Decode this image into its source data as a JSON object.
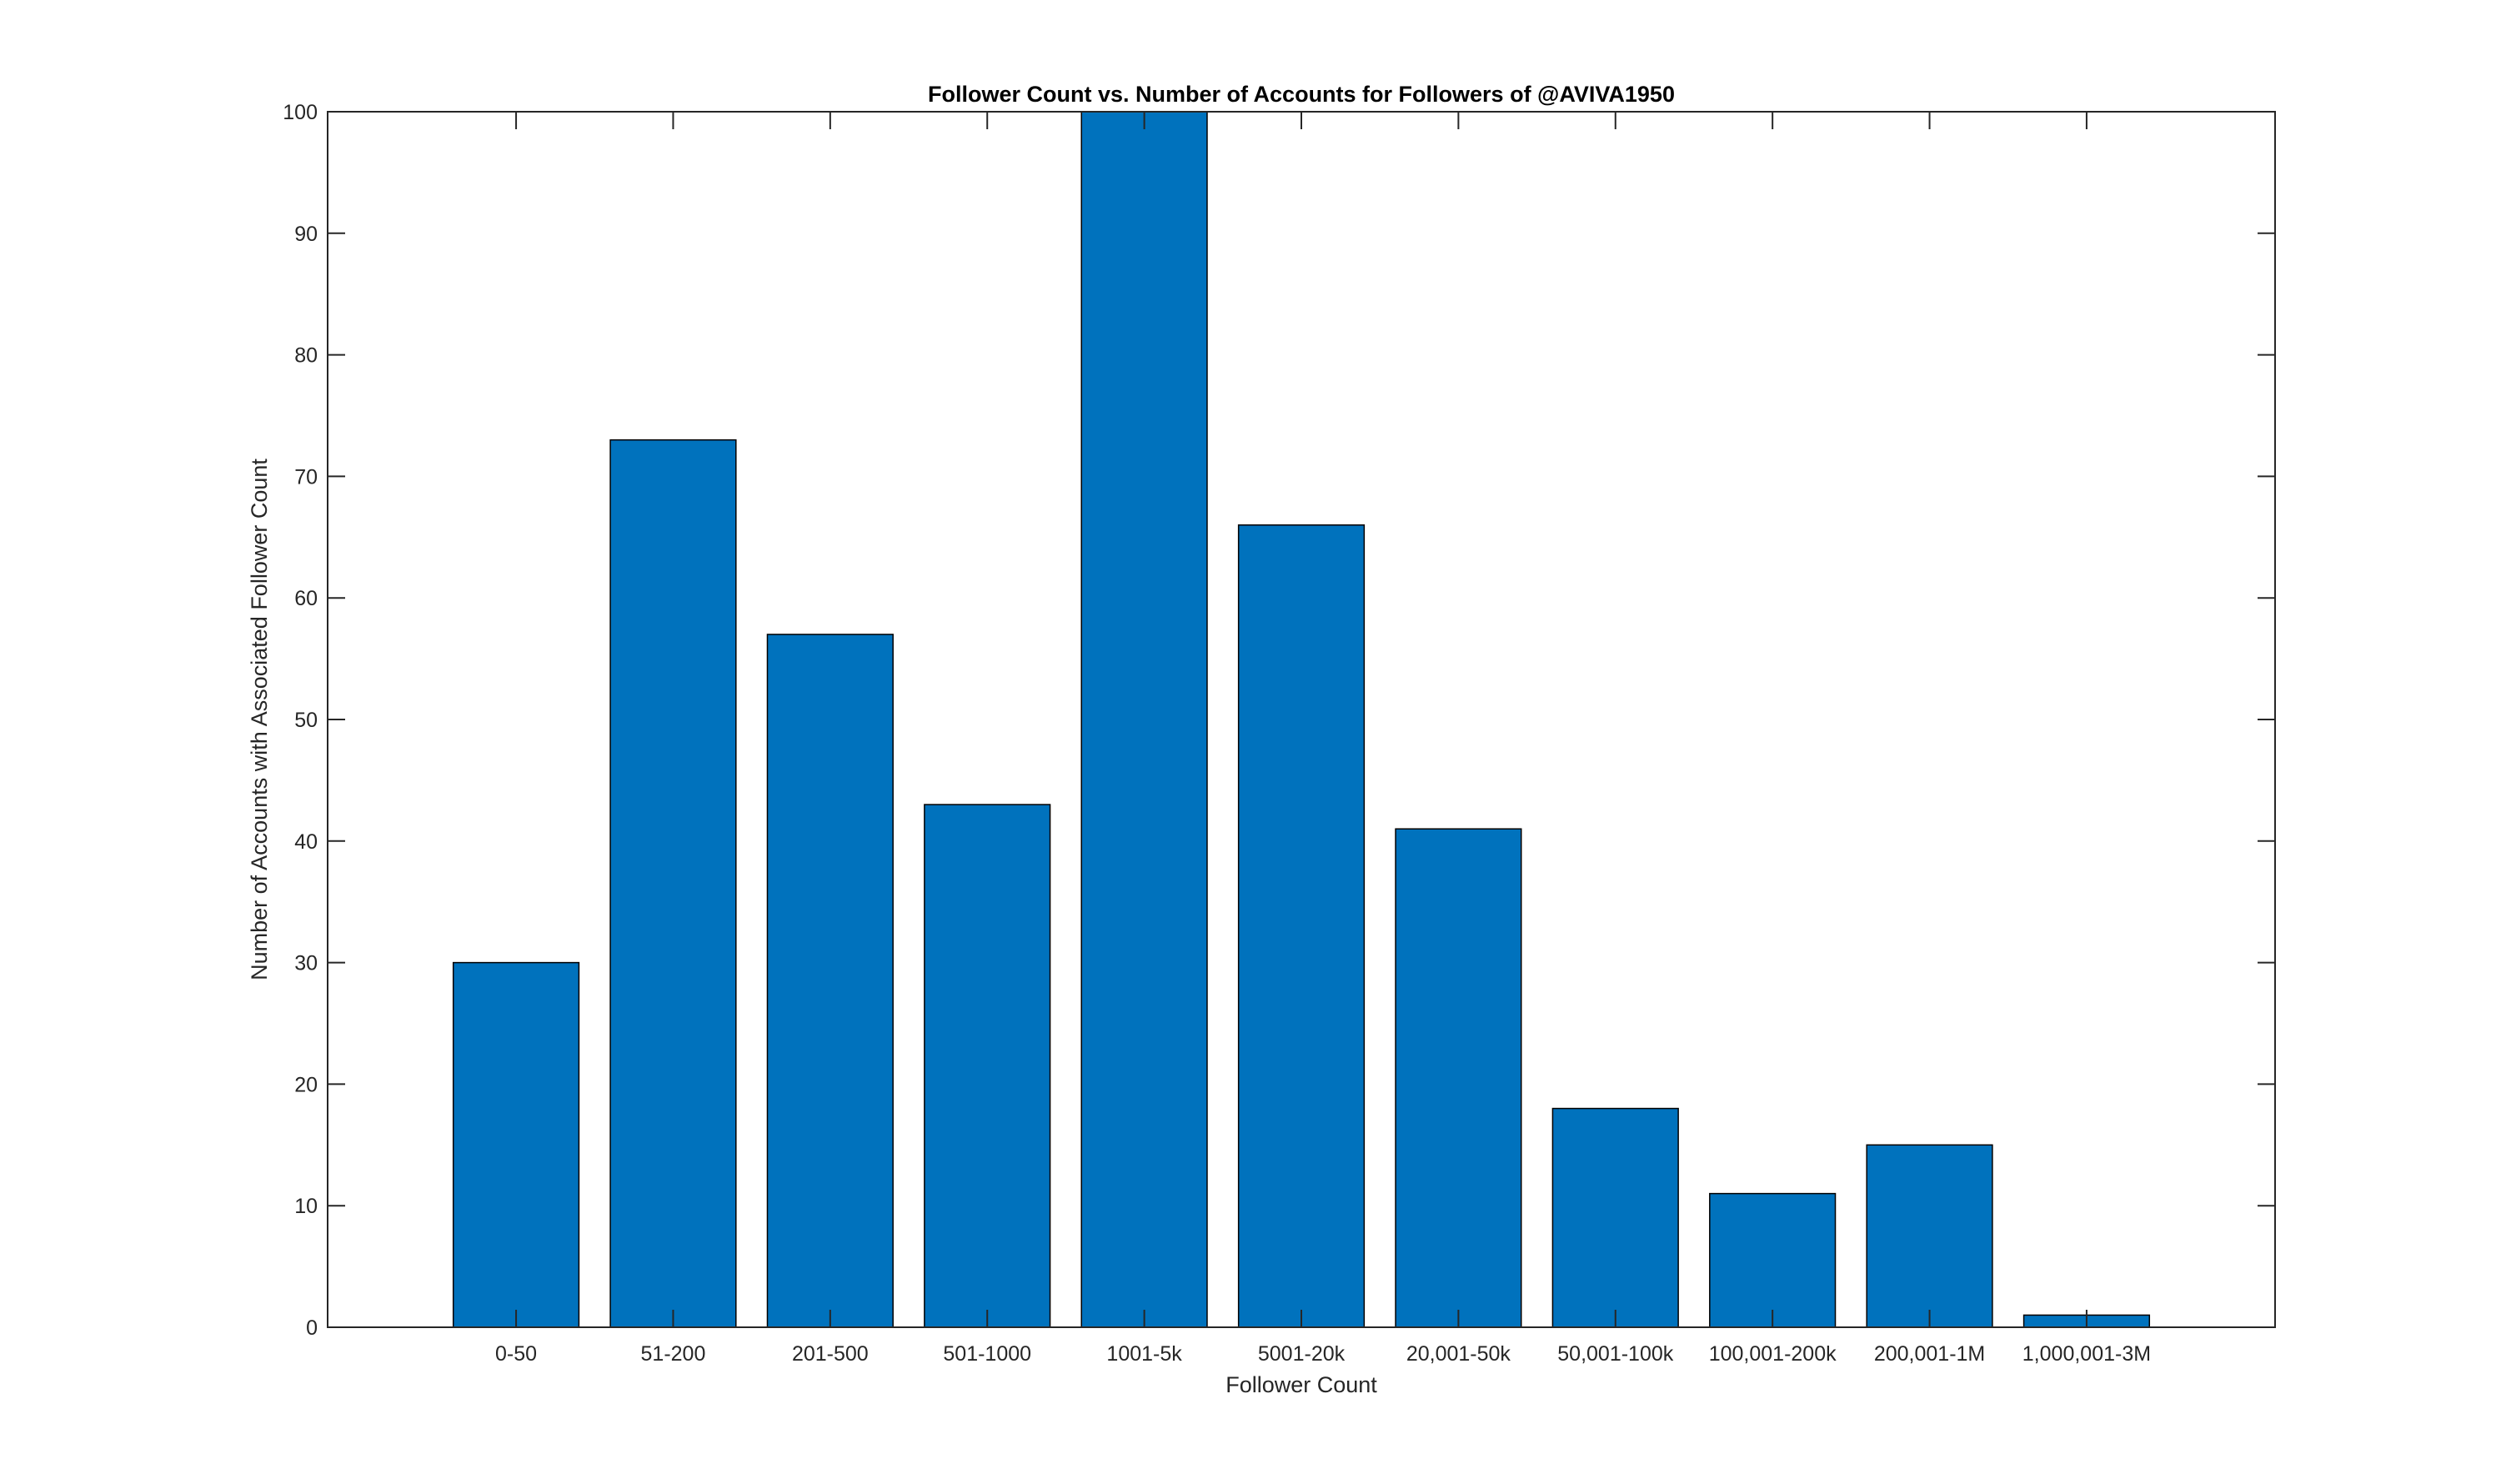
{
  "chart_data": {
    "type": "bar",
    "title": "Follower Count vs. Number of Accounts for Followers of @AVIVA1950",
    "xlabel": "Follower Count",
    "ylabel": "Number of Accounts with Associated Follower Count",
    "categories": [
      "0-50",
      "51-200",
      "201-500",
      "501-1000",
      "1001-5k",
      "5001-20k",
      "20,001-50k",
      "50,001-100k",
      "100,001-200k",
      "200,001-1M",
      "1,000,001-3M"
    ],
    "values": [
      30,
      73,
      57,
      43,
      100,
      66,
      41,
      18,
      11,
      15,
      1
    ],
    "ylim": [
      0,
      100
    ],
    "xlim": [
      -0.2,
      12.2
    ],
    "yticks": [
      0,
      10,
      20,
      30,
      40,
      50,
      60,
      70,
      80,
      90,
      100
    ],
    "grid": false,
    "legend": "none",
    "bar_color": "#0072bd",
    "bar_edge_color": "#000000",
    "axis_color": "#262626"
  }
}
